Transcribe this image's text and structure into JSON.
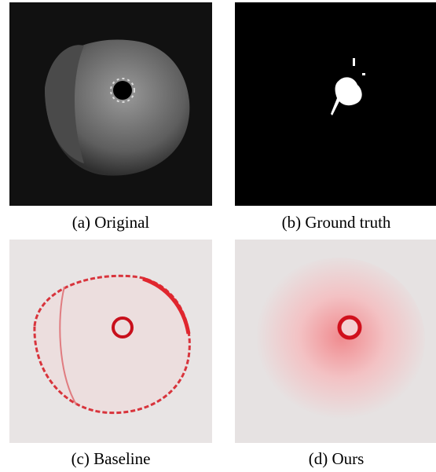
{
  "panels": [
    {
      "caption": "(a) Original"
    },
    {
      "caption": "(b) Ground truth"
    },
    {
      "caption": "(c) Baseline"
    },
    {
      "caption": "(d) Ours"
    }
  ]
}
